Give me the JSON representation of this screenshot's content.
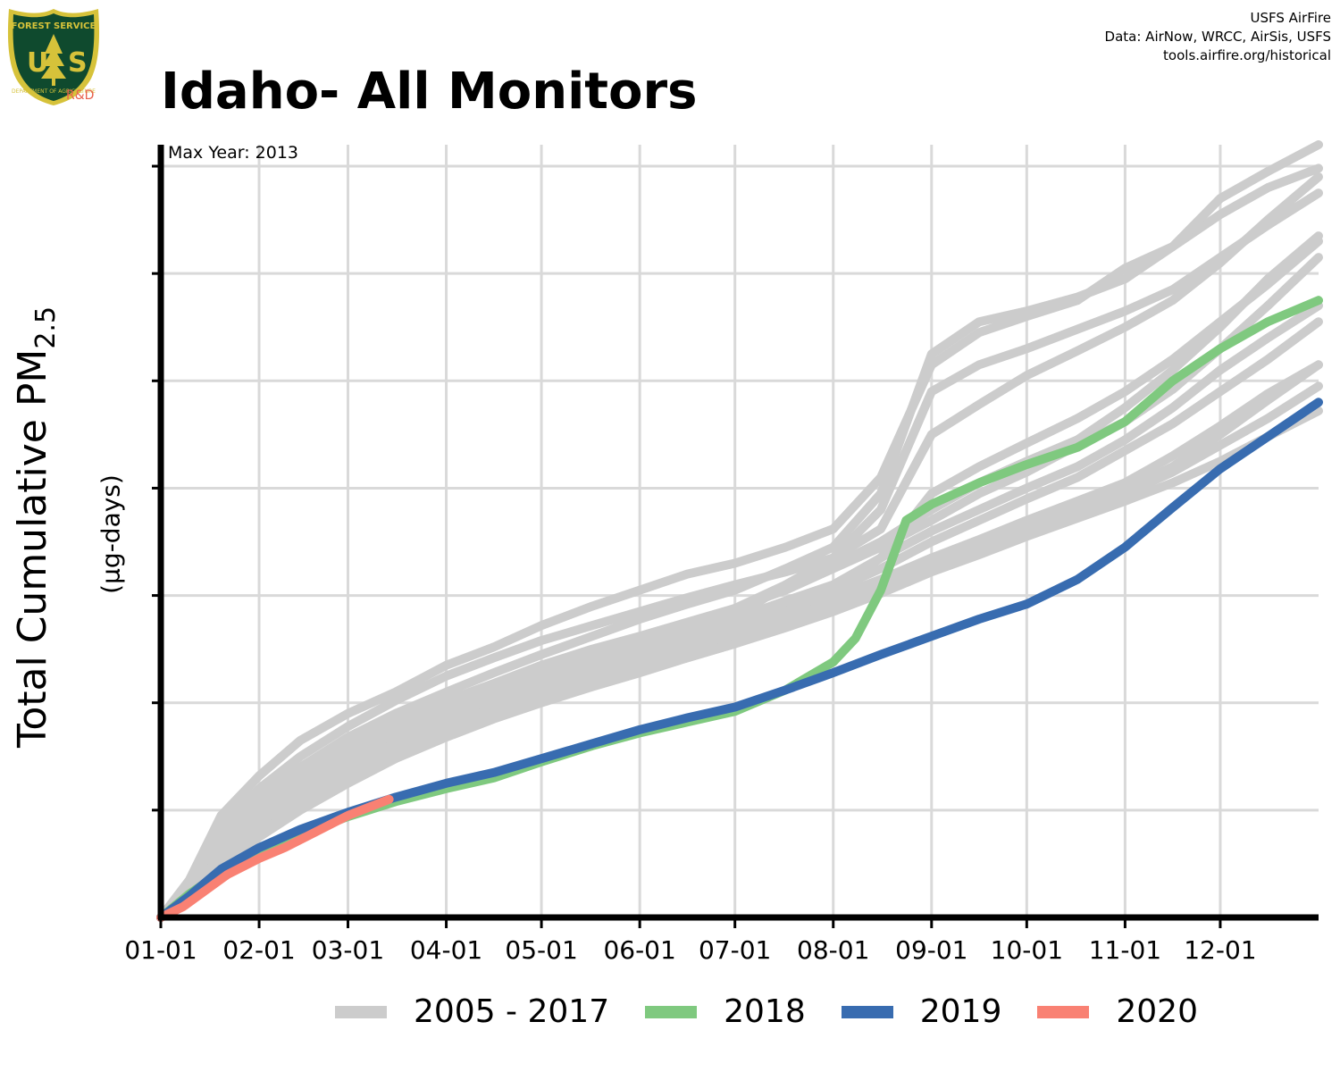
{
  "header": {
    "logo_text": "FOREST SERVICE",
    "logo_letters": "USFS",
    "logo_bottom_text": "DEPARTMENT OF AGRICULTURE",
    "logo_rd": "R&D",
    "credits": [
      "USFS AirFire",
      "Data: AirNow, WRCC, AirSis, USFS",
      "tools.airfire.org/historical"
    ]
  },
  "colors": {
    "historical": "#cccccc",
    "y2018": "#7fc97f",
    "y2019": "#386cb0",
    "y2020": "#f98173",
    "grid": "#d9d9d9",
    "axis": "#000000"
  },
  "chart_data": {
    "type": "line",
    "title": "Idaho- All Monitors",
    "ylabel": "Total Cumulative PM",
    "ylabel_subscript": "2.5",
    "yunit": "(µg-days)",
    "annotation": "Max Year: 2013",
    "x_tick_labels": [
      "01-01",
      "02-01",
      "03-01",
      "04-01",
      "05-01",
      "06-01",
      "07-01",
      "08-01",
      "09-01",
      "10-01",
      "11-01",
      "12-01"
    ],
    "x_tick_days": [
      1,
      32,
      60,
      91,
      121,
      152,
      182,
      213,
      244,
      274,
      305,
      335
    ],
    "xlim": [
      1,
      366
    ],
    "ylim": [
      0,
      7.2
    ],
    "y_gridlines": [
      0,
      1,
      2,
      3,
      4,
      5,
      6,
      7
    ],
    "y_tick_labels_shown": false,
    "series": [
      {
        "name": "2005 - 2017",
        "group": "historical",
        "x": [
          1,
          10,
          20,
          32,
          45,
          60,
          75,
          91,
          106,
          121,
          137,
          152,
          167,
          182,
          198,
          213,
          228,
          244,
          259,
          274,
          290,
          305,
          320,
          335,
          350,
          366
        ],
        "y": [
          0,
          0.35,
          0.95,
          1.32,
          1.65,
          1.9,
          2.1,
          2.35,
          2.52,
          2.72,
          2.9,
          3.05,
          3.2,
          3.3,
          3.45,
          3.62,
          4.1,
          5.15,
          5.45,
          5.6,
          5.75,
          6.05,
          6.25,
          6.55,
          6.8,
          6.98
        ]
      },
      {
        "name": "2005 - 2017",
        "group": "historical",
        "x": [
          1,
          10,
          20,
          32,
          45,
          60,
          75,
          91,
          106,
          121,
          137,
          152,
          167,
          182,
          198,
          213,
          228,
          244,
          259,
          274,
          290,
          305,
          320,
          335,
          350,
          366
        ],
        "y": [
          0,
          0.32,
          0.85,
          1.2,
          1.5,
          1.78,
          2.02,
          2.25,
          2.42,
          2.58,
          2.72,
          2.85,
          2.98,
          3.1,
          3.22,
          3.35,
          3.62,
          4.5,
          4.78,
          5.05,
          5.28,
          5.5,
          5.75,
          6.1,
          6.5,
          6.9
        ]
      },
      {
        "name": "2005 - 2017",
        "group": "historical",
        "x": [
          1,
          10,
          20,
          32,
          45,
          60,
          75,
          91,
          106,
          121,
          137,
          152,
          167,
          182,
          198,
          213,
          228,
          244,
          259,
          274,
          290,
          305,
          320,
          335,
          350,
          366
        ],
        "y": [
          0,
          0.28,
          0.72,
          1.05,
          1.35,
          1.6,
          1.82,
          2.02,
          2.18,
          2.35,
          2.5,
          2.62,
          2.75,
          2.88,
          3.05,
          3.25,
          3.45,
          3.7,
          3.95,
          4.15,
          4.4,
          4.62,
          4.92,
          5.3,
          5.7,
          6.15
        ]
      },
      {
        "name": "2005 - 2017",
        "group": "historical",
        "x": [
          1,
          10,
          20,
          32,
          45,
          60,
          75,
          91,
          106,
          121,
          137,
          152,
          167,
          182,
          198,
          213,
          228,
          244,
          259,
          274,
          290,
          305,
          320,
          335,
          350,
          366
        ],
        "y": [
          0,
          0.25,
          0.62,
          0.95,
          1.25,
          1.5,
          1.72,
          1.92,
          2.08,
          2.22,
          2.38,
          2.52,
          2.65,
          2.78,
          2.95,
          3.1,
          3.35,
          3.95,
          4.2,
          4.42,
          4.65,
          4.9,
          5.2,
          5.55,
          5.9,
          6.3
        ]
      },
      {
        "name": "2005 - 2017",
        "group": "historical",
        "x": [
          1,
          10,
          20,
          32,
          45,
          60,
          75,
          91,
          106,
          121,
          137,
          152,
          167,
          182,
          198,
          213,
          228,
          244,
          259,
          274,
          290,
          305,
          320,
          335,
          350,
          366
        ],
        "y": [
          0,
          0.22,
          0.58,
          0.88,
          1.18,
          1.45,
          1.68,
          1.88,
          2.02,
          2.18,
          2.32,
          2.45,
          2.58,
          2.72,
          2.9,
          3.05,
          3.25,
          3.5,
          3.7,
          3.9,
          4.1,
          4.35,
          4.6,
          4.9,
          5.2,
          5.55
        ]
      },
      {
        "name": "2005 - 2017",
        "group": "historical",
        "x": [
          1,
          10,
          20,
          32,
          45,
          60,
          75,
          91,
          106,
          121,
          137,
          152,
          167,
          182,
          198,
          213,
          228,
          244,
          259,
          274,
          290,
          305,
          320,
          335,
          350,
          366
        ],
        "y": [
          0,
          0.2,
          0.55,
          0.85,
          1.12,
          1.4,
          1.62,
          1.82,
          1.98,
          2.12,
          2.28,
          2.4,
          2.52,
          2.65,
          2.82,
          2.98,
          3.15,
          3.35,
          3.52,
          3.7,
          3.88,
          4.05,
          4.3,
          4.58,
          4.88,
          5.15
        ]
      },
      {
        "name": "2005 - 2017",
        "group": "historical",
        "x": [
          1,
          10,
          20,
          32,
          45,
          60,
          75,
          91,
          106,
          121,
          137,
          152,
          167,
          182,
          198,
          213,
          228,
          244,
          259,
          274,
          290,
          305,
          320,
          335,
          350,
          366
        ],
        "y": [
          0,
          0.18,
          0.5,
          0.78,
          1.05,
          1.32,
          1.55,
          1.75,
          1.9,
          2.05,
          2.2,
          2.32,
          2.45,
          2.58,
          2.75,
          2.9,
          3.08,
          3.25,
          3.42,
          3.6,
          3.78,
          3.95,
          4.15,
          4.4,
          4.65,
          4.95
        ]
      },
      {
        "name": "2005 - 2017",
        "group": "historical",
        "x": [
          1,
          10,
          20,
          32,
          45,
          60,
          75,
          91,
          106,
          121,
          137,
          152,
          167,
          182,
          198,
          213,
          228,
          244,
          259,
          274,
          290,
          305,
          320,
          335,
          350,
          366
        ],
        "y": [
          0,
          0.2,
          0.48,
          0.75,
          1.0,
          1.25,
          1.48,
          1.68,
          1.85,
          2.0,
          2.15,
          2.28,
          2.42,
          2.55,
          2.7,
          2.85,
          3.02,
          3.22,
          3.38,
          3.55,
          3.72,
          3.88,
          4.05,
          4.25,
          4.48,
          4.72
        ]
      },
      {
        "name": "2005 - 2017",
        "group": "historical",
        "x": [
          1,
          10,
          20,
          32,
          45,
          60,
          75,
          91,
          106,
          121,
          137,
          152,
          167,
          182,
          198,
          213,
          228,
          244,
          259,
          274,
          290,
          305,
          320,
          335,
          350,
          366
        ],
        "y": [
          0,
          0.22,
          0.6,
          0.92,
          1.22,
          1.5,
          1.72,
          1.92,
          2.08,
          2.25,
          2.4,
          2.52,
          2.65,
          2.8,
          3.1,
          3.35,
          3.8,
          4.9,
          5.15,
          5.3,
          5.48,
          5.65,
          5.85,
          6.15,
          6.45,
          6.75
        ]
      },
      {
        "name": "2005 - 2017",
        "group": "historical",
        "x": [
          1,
          10,
          20,
          32,
          45,
          60,
          75,
          91,
          106,
          121,
          137,
          152,
          167,
          182,
          198,
          213,
          228,
          244,
          259,
          274,
          290,
          305,
          320,
          335,
          350,
          366
        ],
        "y": [
          0,
          0.25,
          0.65,
          0.98,
          1.28,
          1.55,
          1.78,
          1.98,
          2.15,
          2.3,
          2.45,
          2.58,
          2.72,
          2.88,
          3.1,
          3.28,
          3.5,
          3.8,
          4.05,
          4.25,
          4.45,
          4.75,
          5.1,
          5.5,
          5.95,
          6.35
        ]
      },
      {
        "name": "2005 - 2017",
        "group": "historical",
        "x": [
          1,
          10,
          20,
          32,
          45,
          60,
          75,
          91,
          106,
          121,
          137,
          152,
          167,
          182,
          198,
          213,
          228,
          244,
          259,
          274,
          290,
          305,
          320,
          335,
          350,
          366
        ],
        "y": [
          0,
          0.3,
          0.78,
          1.1,
          1.4,
          1.68,
          1.9,
          2.1,
          2.28,
          2.45,
          2.62,
          2.78,
          2.92,
          3.05,
          3.25,
          3.45,
          3.95,
          5.25,
          5.55,
          5.65,
          5.78,
          5.95,
          6.25,
          6.7,
          6.95,
          7.2
        ]
      },
      {
        "name": "2005 - 2017",
        "group": "historical",
        "x": [
          1,
          10,
          20,
          32,
          45,
          60,
          75,
          91,
          106,
          121,
          137,
          152,
          167,
          182,
          198,
          213,
          228,
          244,
          259,
          274,
          290,
          305,
          320,
          335,
          350,
          366
        ],
        "y": [
          0,
          0.2,
          0.52,
          0.8,
          1.08,
          1.35,
          1.58,
          1.78,
          1.95,
          2.1,
          2.25,
          2.38,
          2.5,
          2.65,
          2.85,
          3.05,
          3.35,
          3.6,
          3.8,
          4.0,
          4.2,
          4.45,
          4.75,
          5.1,
          5.4,
          5.7
        ]
      },
      {
        "name": "2005 - 2017",
        "group": "historical",
        "x": [
          1,
          10,
          20,
          32,
          45,
          60,
          75,
          91,
          106,
          121,
          137,
          152,
          167,
          182,
          198,
          213,
          228,
          244,
          259,
          274,
          290,
          305,
          320,
          335,
          350,
          366
        ],
        "y": [
          0,
          0.18,
          0.5,
          0.78,
          1.05,
          1.3,
          1.52,
          1.72,
          1.88,
          2.02,
          2.18,
          2.3,
          2.42,
          2.55,
          2.72,
          2.88,
          3.08,
          3.28,
          3.45,
          3.62,
          3.8,
          3.98,
          4.2,
          4.5,
          4.82,
          5.15
        ]
      },
      {
        "name": "2018",
        "group": "y2018",
        "x": [
          1,
          10,
          20,
          32,
          45,
          60,
          75,
          91,
          106,
          121,
          137,
          152,
          167,
          182,
          198,
          213,
          220,
          228,
          236,
          244,
          259,
          274,
          290,
          305,
          320,
          335,
          350,
          366
        ],
        "y": [
          0,
          0.22,
          0.42,
          0.6,
          0.78,
          0.94,
          1.08,
          1.2,
          1.3,
          1.45,
          1.6,
          1.72,
          1.82,
          1.92,
          2.12,
          2.38,
          2.6,
          3.05,
          3.7,
          3.85,
          4.05,
          4.22,
          4.38,
          4.62,
          5.0,
          5.3,
          5.55,
          5.75
        ]
      },
      {
        "name": "2019",
        "group": "y2019",
        "x": [
          1,
          10,
          20,
          32,
          45,
          60,
          75,
          91,
          106,
          121,
          137,
          152,
          167,
          182,
          198,
          213,
          228,
          244,
          259,
          274,
          290,
          305,
          320,
          335,
          350,
          366
        ],
        "y": [
          0,
          0.2,
          0.45,
          0.65,
          0.82,
          0.98,
          1.12,
          1.25,
          1.35,
          1.48,
          1.62,
          1.75,
          1.86,
          1.96,
          2.12,
          2.28,
          2.45,
          2.62,
          2.78,
          2.92,
          3.15,
          3.45,
          3.82,
          4.18,
          4.48,
          4.8
        ]
      },
      {
        "name": "2020",
        "group": "y2020",
        "x": [
          1,
          8,
          15,
          22,
          32,
          40,
          50,
          60,
          66,
          73
        ],
        "y": [
          0,
          0.1,
          0.25,
          0.4,
          0.55,
          0.65,
          0.8,
          0.95,
          1.02,
          1.1
        ]
      }
    ],
    "legend": {
      "placement": "bottom",
      "items": [
        {
          "label": "2005 - 2017",
          "color_key": "historical"
        },
        {
          "label": "2018",
          "color_key": "y2018"
        },
        {
          "label": "2019",
          "color_key": "y2019"
        },
        {
          "label": "2020",
          "color_key": "y2020"
        }
      ]
    }
  }
}
